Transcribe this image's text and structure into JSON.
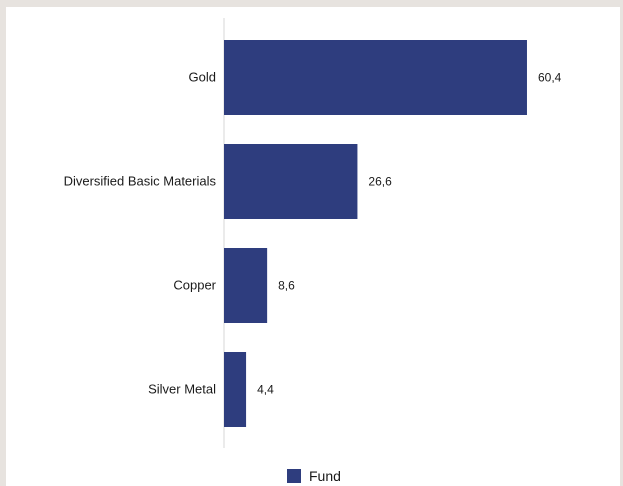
{
  "colors": {
    "bar": "#2e3d7e",
    "axis": "#d7d7d7"
  },
  "legend": {
    "label": "Fund"
  },
  "chart_data": {
    "type": "bar",
    "orientation": "horizontal",
    "categories": [
      "Gold",
      "Diversified Basic Materials",
      "Copper",
      "Silver Metal"
    ],
    "series": [
      {
        "name": "Fund",
        "values": [
          60.4,
          26.6,
          8.6,
          4.4
        ]
      }
    ],
    "value_labels": [
      "60,4",
      "26,6",
      "8,6",
      "4,4"
    ],
    "xlim": [
      0,
      62
    ],
    "grid": false,
    "legend_position": "bottom"
  }
}
